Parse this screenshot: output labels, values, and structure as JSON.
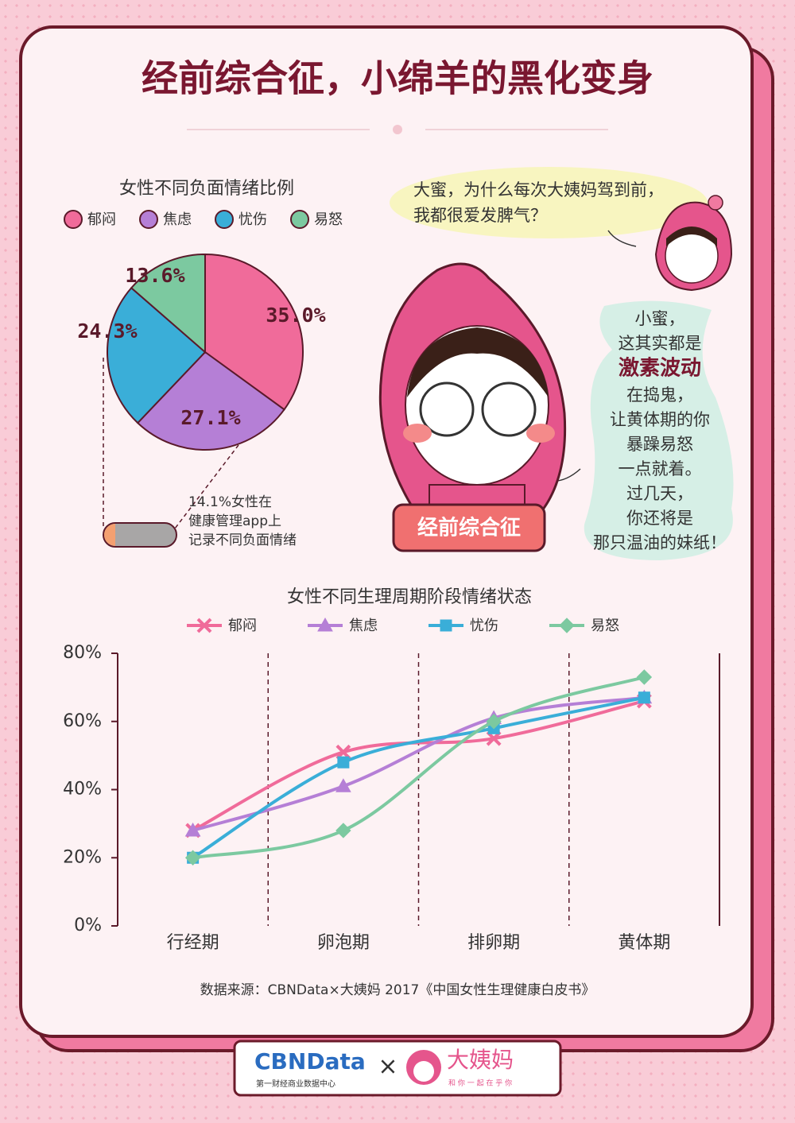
{
  "title": "经前综合征，小绵羊的黑化变身",
  "chart_data": [
    {
      "type": "pie",
      "title": "女性不同负面情绪比例",
      "categories": [
        "郁闷",
        "焦虑",
        "忧伤",
        "易怒"
      ],
      "values": [
        35.0,
        27.1,
        24.3,
        13.6
      ],
      "value_labels": [
        "35.0%",
        "27.1%",
        "24.3%",
        "13.6%"
      ],
      "colors": [
        "#f06b9a",
        "#b57fd6",
        "#3aaed8",
        "#7cc9a0"
      ]
    },
    {
      "type": "line",
      "title": "女性不同生理周期阶段情绪状态",
      "categories": [
        "行经期",
        "卵泡期",
        "排卵期",
        "黄体期"
      ],
      "ylim": [
        0,
        80
      ],
      "yticks": [
        {
          "value": 0,
          "label": "0%"
        },
        {
          "value": 20,
          "label": "20%"
        },
        {
          "value": 40,
          "label": "40%"
        },
        {
          "value": 60,
          "label": "60%"
        },
        {
          "value": 80,
          "label": "80%"
        }
      ],
      "series": [
        {
          "name": "郁闷",
          "color": "#f06b9a",
          "marker": "x",
          "values": [
            28,
            51,
            55,
            66
          ]
        },
        {
          "name": "焦虑",
          "color": "#b57fd6",
          "marker": "triangle",
          "values": [
            28,
            41,
            61,
            67
          ]
        },
        {
          "name": "忧伤",
          "color": "#3aaed8",
          "marker": "square",
          "values": [
            20,
            48,
            58,
            67
          ]
        },
        {
          "name": "易怒",
          "color": "#7cc9a0",
          "marker": "diamond",
          "values": [
            20,
            28,
            60,
            73
          ]
        }
      ]
    }
  ],
  "pie_note": [
    "14.1%女性在",
    "健康管理app上",
    "记录不同负面情绪"
  ],
  "bubble_question": [
    "大蜜，为什么每次大姨妈驾到前，",
    "我都很爱发脾气？"
  ],
  "bubble_answer": [
    "小蜜，",
    "这其实都是",
    "激素波动",
    "在捣鬼，",
    "让黄体期的你",
    "暴躁易怒",
    "一点就着。",
    "过几天，",
    "你还将是",
    "那只温油的妹纸！"
  ],
  "banner": "经前综合征",
  "source": "数据来源：CBNData×大姨妈 2017《中国女性生理健康白皮书》",
  "footer": {
    "cbn": "CBNData",
    "cbn_sub": "第一财经商业数据中心",
    "times": "×",
    "dym": "大姨妈",
    "dym_sub": "和 你 一 起 在 乎 你"
  }
}
